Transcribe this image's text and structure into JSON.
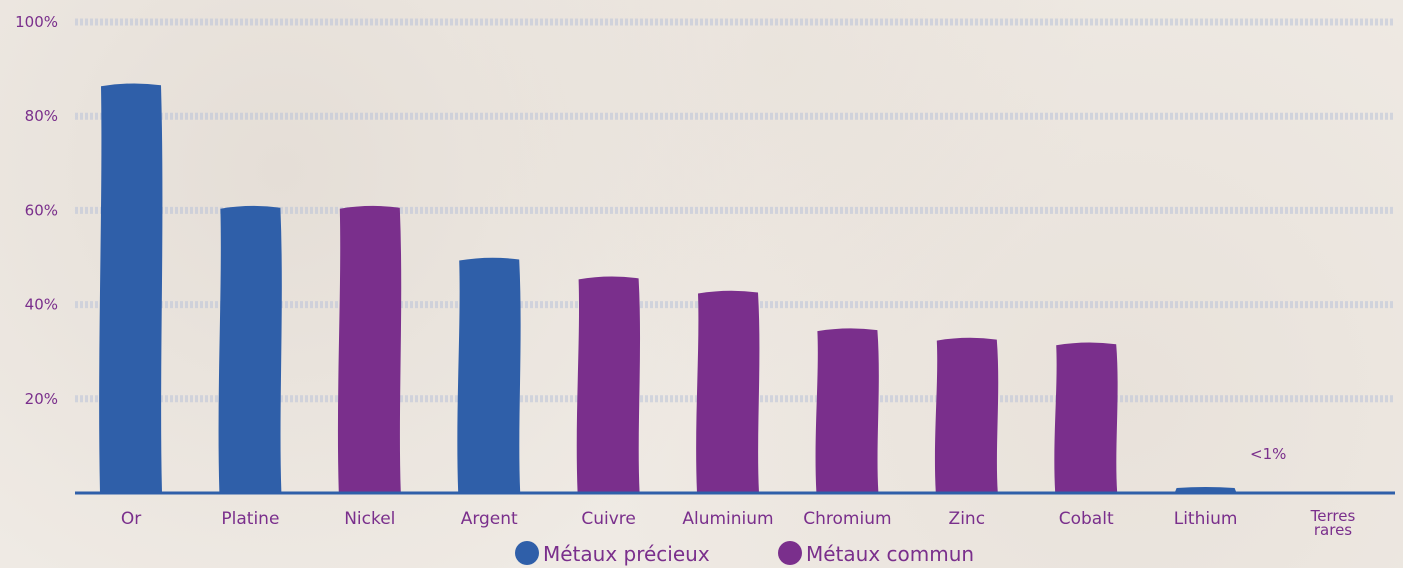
{
  "chart_data": {
    "type": "bar",
    "categories": [
      "Or",
      "Platine",
      "Nickel",
      "Argent",
      "Cuivre",
      "Aluminium",
      "Chromium",
      "Zinc",
      "Cobalt",
      "Lithium",
      "Terres rares"
    ],
    "category_lines": [
      [
        "Or"
      ],
      [
        "Platine"
      ],
      [
        "Nickel"
      ],
      [
        "Argent"
      ],
      [
        "Cuivre"
      ],
      [
        "Aluminium"
      ],
      [
        "Chromium"
      ],
      [
        "Zinc"
      ],
      [
        "Cobalt"
      ],
      [
        "Lithium"
      ],
      [
        "Terres",
        "rares"
      ]
    ],
    "values": [
      87,
      61,
      61,
      50,
      46,
      43,
      35,
      33,
      32,
      1,
      0
    ],
    "groups": [
      "precieux",
      "precieux",
      "commun",
      "precieux",
      "commun",
      "commun",
      "commun",
      "commun",
      "commun",
      "precieux",
      "commun"
    ],
    "yticks": [
      20,
      40,
      60,
      80,
      100
    ],
    "ytick_labels": [
      "20%",
      "40%",
      "60%",
      "80%",
      "100%"
    ],
    "ylim": [
      0,
      100
    ],
    "annotation": "<1%",
    "title": "",
    "xlabel": "",
    "ylabel": "",
    "legend": [
      {
        "key": "precieux",
        "label": "Métaux précieux",
        "color": "#2f5fa9"
      },
      {
        "key": "commun",
        "label": "Métaux commun",
        "color": "#7a2f8c"
      }
    ],
    "legend_position": "bottom-center",
    "grid": true
  },
  "colors": {
    "precieux": "#2f5fa9",
    "commun": "#7a2f8c",
    "text": "#7a2f8c",
    "axis": "#2f5fa9",
    "grid": "#b9c3d8"
  }
}
